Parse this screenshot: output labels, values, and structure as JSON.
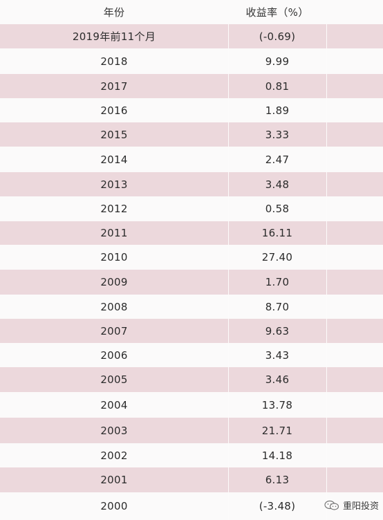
{
  "table": {
    "header": {
      "year": "年份",
      "return": "收益率（%）"
    },
    "rows": [
      {
        "year": "2019年前11个月",
        "value": "(-0.69)"
      },
      {
        "year": "2018",
        "value": "9.99"
      },
      {
        "year": "2017",
        "value": "0.81"
      },
      {
        "year": "2016",
        "value": "1.89"
      },
      {
        "year": "2015",
        "value": "3.33"
      },
      {
        "year": "2014",
        "value": "2.47"
      },
      {
        "year": "2013",
        "value": "3.48"
      },
      {
        "year": "2012",
        "value": "0.58"
      },
      {
        "year": "2011",
        "value": "16.11"
      },
      {
        "year": "2010",
        "value": "27.40"
      },
      {
        "year": "2009",
        "value": "1.70"
      },
      {
        "year": "2008",
        "value": "8.70"
      },
      {
        "year": "2007",
        "value": "9.63"
      },
      {
        "year": "2006",
        "value": "3.43"
      },
      {
        "year": "2005",
        "value": "3.46"
      },
      {
        "year": "2004",
        "value": "13.78"
      },
      {
        "year": "2003",
        "value": "21.71"
      },
      {
        "year": "2002",
        "value": "14.18"
      },
      {
        "year": "2001",
        "value": "6.13"
      },
      {
        "year": "2000",
        "value": "(-3.48)"
      }
    ]
  },
  "watermark": {
    "text": "重阳投资",
    "icon": "wechat-icon"
  },
  "colors": {
    "shaded_row": "#ecd8dc",
    "plain_row": "#fbfafa",
    "text": "#2b2b2b"
  }
}
